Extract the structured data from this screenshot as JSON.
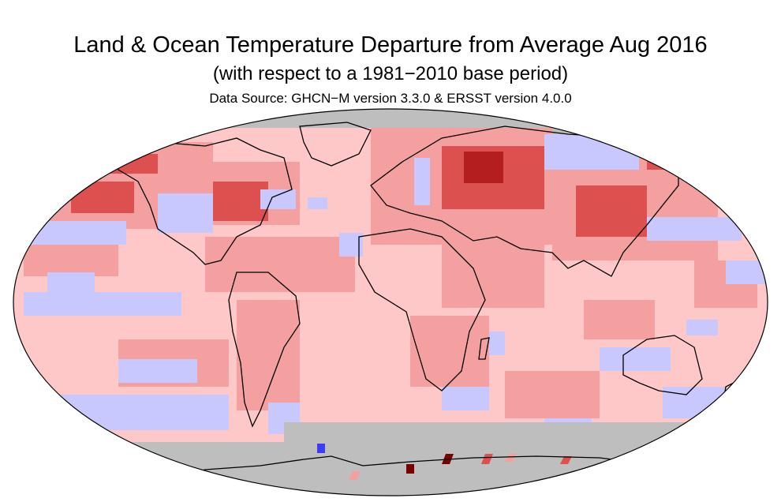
{
  "title": "Land & Ocean Temperature Departure from Average Aug 2016",
  "subtitle": "(with respect to a 1981−2010 base period)",
  "source": "Data Source: GHCN−M version 3.3.0 & ERSST version 4.0.0",
  "colors": {
    "missing": "#bebebe",
    "cold1": "#c8c8ff",
    "cold2": "#9696ff",
    "cold3": "#3c3cf0",
    "warm1": "#ffc8c8",
    "warm2": "#f5a0a0",
    "warm3": "#dc5050",
    "warm4": "#b41e1e",
    "warm5": "#7a0000",
    "outline": "#000000"
  }
}
